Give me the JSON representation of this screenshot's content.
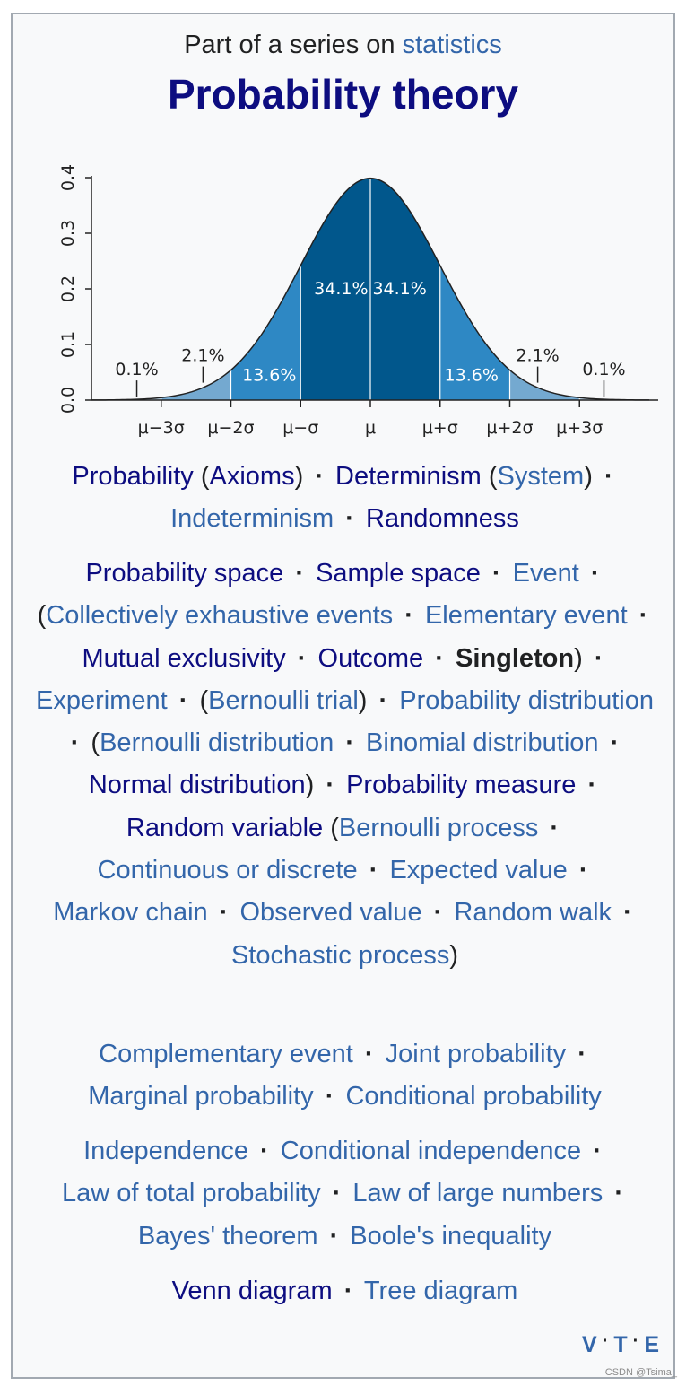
{
  "header": {
    "series_prefix": "Part of a series on ",
    "series_link": "statistics",
    "title": "Probability theory"
  },
  "chart_data": {
    "type": "area",
    "yticks": [
      "0.0",
      "0.1",
      "0.2",
      "0.3",
      "0.4"
    ],
    "ylim": [
      0,
      0.4
    ],
    "xlim": [
      -4,
      4
    ],
    "xtick_labels": [
      "μ−3σ",
      "μ−2σ",
      "μ−σ",
      "μ",
      "μ+σ",
      "μ+2σ",
      "μ+3σ"
    ],
    "region_labels": [
      {
        "text": "0.1%",
        "x": -3.35,
        "y": 0.045
      },
      {
        "text": "2.1%",
        "x": -2.4,
        "y": 0.07
      },
      {
        "text": "13.6%",
        "x": -1.45,
        "y": 0.035
      },
      {
        "text": "34.1%",
        "x": -0.42,
        "y": 0.19
      },
      {
        "text": "34.1%",
        "x": 0.42,
        "y": 0.19
      },
      {
        "text": "13.6%",
        "x": 1.45,
        "y": 0.035
      },
      {
        "text": "2.1%",
        "x": 2.4,
        "y": 0.07
      },
      {
        "text": "0.1%",
        "x": 3.35,
        "y": 0.045
      }
    ],
    "colors": {
      "core": "#01578c",
      "mid": "#2e88c4",
      "outer": "#74a9d0",
      "tail": "#c2d8ea"
    }
  },
  "groups": [
    {
      "top": 492,
      "items": [
        [
          {
            "t": "Probability",
            "c": "navy"
          },
          {
            "t": " (",
            "c": "plain"
          },
          {
            "t": "Axioms",
            "c": "navy"
          },
          {
            "t": ")",
            "c": "plain"
          }
        ],
        [
          {
            "t": "Determinism",
            "c": "navy"
          },
          {
            "t": " (",
            "c": "plain"
          },
          {
            "t": "System",
            "c": "link"
          },
          {
            "t": ")",
            "c": "plain"
          }
        ],
        [
          {
            "t": "Indeterminism",
            "c": "link"
          }
        ],
        [
          {
            "t": "Randomness",
            "c": "navy"
          }
        ]
      ]
    },
    {
      "top": 600,
      "items": [
        [
          {
            "t": "Probability space",
            "c": "navy"
          }
        ],
        [
          {
            "t": "Sample space",
            "c": "navy"
          }
        ],
        [
          {
            "t": "Event",
            "c": "link"
          }
        ],
        [
          {
            "t": "(",
            "c": "plain"
          },
          {
            "t": "Collectively exhaustive events",
            "c": "link"
          }
        ],
        [
          {
            "t": "Elementary event",
            "c": "link"
          }
        ],
        [
          {
            "t": "Mutual exclusivity",
            "c": "navy"
          }
        ],
        [
          {
            "t": "Outcome",
            "c": "navy"
          }
        ],
        [
          {
            "t": "Singleton",
            "c": "bold"
          },
          {
            "t": ")",
            "c": "plain"
          }
        ],
        [
          {
            "t": "Experiment",
            "c": "link"
          }
        ],
        [
          {
            "t": "(",
            "c": "plain"
          },
          {
            "t": "Bernoulli trial",
            "c": "link"
          },
          {
            "t": ")",
            "c": "plain"
          }
        ],
        [
          {
            "t": "Probability distribution",
            "c": "link"
          }
        ],
        [
          {
            "t": "(",
            "c": "plain"
          },
          {
            "t": "Bernoulli distribution",
            "c": "link"
          }
        ],
        [
          {
            "t": "Binomial distribution",
            "c": "link"
          }
        ],
        [
          {
            "t": "Normal distribution",
            "c": "navy"
          },
          {
            "t": ")",
            "c": "plain"
          }
        ],
        [
          {
            "t": "Probability measure",
            "c": "navy"
          }
        ],
        [
          {
            "t": "Random variable",
            "c": "navy"
          },
          {
            "t": " (",
            "c": "plain"
          },
          {
            "t": "Bernoulli process",
            "c": "link"
          }
        ],
        [
          {
            "t": "Continuous or discrete",
            "c": "link"
          }
        ],
        [
          {
            "t": "Expected value",
            "c": "link"
          }
        ],
        [
          {
            "t": "Markov chain",
            "c": "link"
          }
        ],
        [
          {
            "t": "Observed value",
            "c": "link"
          }
        ],
        [
          {
            "t": "Random walk",
            "c": "link"
          }
        ],
        [
          {
            "t": "Stochastic process",
            "c": "link"
          },
          {
            "t": ")",
            "c": "plain"
          }
        ]
      ]
    },
    {
      "top": 1136,
      "items": [
        [
          {
            "t": "Complementary event",
            "c": "link"
          }
        ],
        [
          {
            "t": "Joint probability",
            "c": "link"
          }
        ],
        [
          {
            "t": "Marginal probability",
            "c": "link"
          }
        ],
        [
          {
            "t": "Conditional probability",
            "c": "link"
          }
        ]
      ]
    },
    {
      "top": 1244,
      "items": [
        [
          {
            "t": "Independence",
            "c": "link"
          }
        ],
        [
          {
            "t": "Conditional independence",
            "c": "link"
          }
        ],
        [
          {
            "t": "Law of total probability",
            "c": "link"
          }
        ],
        [
          {
            "t": "Law of large numbers",
            "c": "link"
          }
        ],
        [
          {
            "t": "Bayes' theorem",
            "c": "link"
          }
        ],
        [
          {
            "t": "Boole's inequality",
            "c": "link"
          }
        ]
      ]
    },
    {
      "top": 1400,
      "items": [
        [
          {
            "t": "Venn diagram",
            "c": "navy"
          }
        ],
        [
          {
            "t": "Tree diagram",
            "c": "link"
          }
        ]
      ]
    }
  ],
  "separator": "·",
  "navbox": {
    "v": "V",
    "t": "T",
    "e": "E"
  },
  "credit": "CSDN @Tsima_"
}
